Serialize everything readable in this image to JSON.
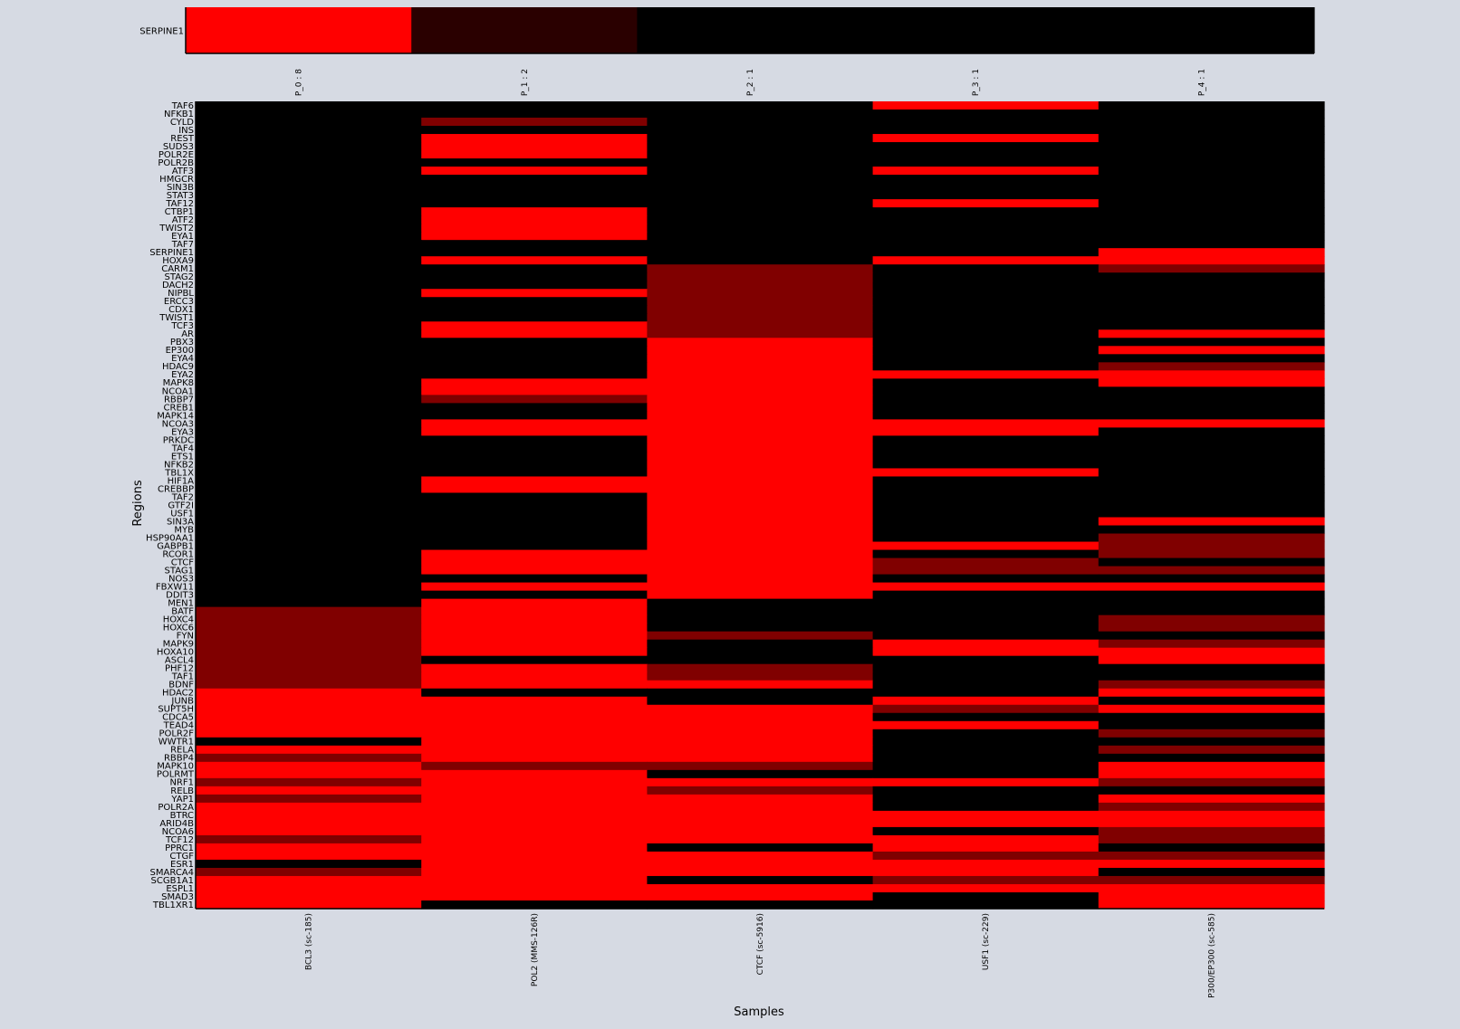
{
  "chart_data": [
    {
      "type": "heatmap",
      "title": "",
      "ylabel": "",
      "rows": [
        "SERPINE1"
      ],
      "columns": [
        "P_0 : 8",
        "P_1 : 2",
        "P_2 : 1",
        "P_3 : 1",
        "P_4 : 1"
      ],
      "values": [
        [
          3,
          1,
          0,
          0,
          0
        ]
      ],
      "color_scale": {
        "0": "#000000",
        "1": "#2a0000",
        "2": "#800000",
        "3": "#ff0000"
      }
    },
    {
      "type": "heatmap",
      "title": "",
      "xlabel": "Samples",
      "ylabel": "Regions",
      "columns": [
        "BCL3 (sc-185)",
        "POL2 (MMS-126R)",
        "CTCF (sc-5916)",
        "USF1 (sc-229)",
        "P300/EP300 (sc-585)"
      ],
      "rows": [
        "TAF6",
        "NFKB1",
        "CYLD",
        "INS",
        "REST",
        "SUDS3",
        "POLR2E",
        "POLR2B",
        "ATF3",
        "HMGCR",
        "SIN3B",
        "STAT3",
        "TAF12",
        "CTBP1",
        "ATF2",
        "TWIST2",
        "EYA1",
        "TAF7",
        "SERPINE1",
        "HOXA9",
        "CARM1",
        "STAG2",
        "DACH2",
        "NIPBL",
        "ERCC3",
        "CDX1",
        "TWIST1",
        "TCF3",
        "AR",
        "PBX3",
        "EP300",
        "EYA4",
        "HDAC9",
        "EYA2",
        "MAPK8",
        "NCOA1",
        "RBBP7",
        "CREB1",
        "MAPK14",
        "NCOA3",
        "EYA3",
        "PRKDC",
        "TAF4",
        "ETS1",
        "NFKB2",
        "TBL1X",
        "HIF1A",
        "CREBBP",
        "TAF2",
        "GTF2I",
        "USF1",
        "SIN3A",
        "MYB",
        "HSP90AA1",
        "GABPB1",
        "RCOR1",
        "CTCF",
        "STAG1",
        "NOS3",
        "FBXW11",
        "DDIT3",
        "MEN1",
        "BATF",
        "HOXC4",
        "HOXC6",
        "FYN",
        "MAPK9",
        "HOXA10",
        "ASCL4",
        "PHF12",
        "TAF1",
        "BDNF",
        "HDAC2",
        "JUNB",
        "SUPT5H",
        "CDCA5",
        "TEAD4",
        "POLR2F",
        "WWTR1",
        "RELA",
        "RBBP4",
        "MAPK10",
        "POLRMT",
        "NRF1",
        "RELB",
        "YAP1",
        "POLR2A",
        "BTRC",
        "ARID4B",
        "NCOA6",
        "TCF12",
        "PPRC1",
        "CTGF",
        "ESR1",
        "SMARCA4",
        "SCGB1A1",
        "ESPL1",
        "SMAD3",
        "TBL1XR1"
      ],
      "values": [
        [
          0,
          0,
          0,
          3,
          0
        ],
        [
          0,
          0,
          0,
          0,
          0
        ],
        [
          0,
          2,
          0,
          0,
          0
        ],
        [
          0,
          0,
          0,
          0,
          0
        ],
        [
          0,
          3,
          0,
          3,
          0
        ],
        [
          0,
          3,
          0,
          0,
          0
        ],
        [
          0,
          3,
          0,
          0,
          0
        ],
        [
          0,
          0,
          0,
          0,
          0
        ],
        [
          0,
          3,
          0,
          3,
          0
        ],
        [
          0,
          0,
          0,
          0,
          0
        ],
        [
          0,
          0,
          0,
          0,
          0
        ],
        [
          0,
          0,
          0,
          0,
          0
        ],
        [
          0,
          0,
          0,
          3,
          0
        ],
        [
          0,
          3,
          0,
          0,
          0
        ],
        [
          0,
          3,
          0,
          0,
          0
        ],
        [
          0,
          3,
          0,
          0,
          0
        ],
        [
          0,
          3,
          0,
          0,
          0
        ],
        [
          0,
          0,
          0,
          0,
          0
        ],
        [
          0,
          0,
          0,
          0,
          3
        ],
        [
          0,
          3,
          0,
          3,
          3
        ],
        [
          0,
          0,
          2,
          0,
          2
        ],
        [
          0,
          0,
          2,
          0,
          0
        ],
        [
          0,
          0,
          2,
          0,
          0
        ],
        [
          0,
          3,
          2,
          0,
          0
        ],
        [
          0,
          0,
          2,
          0,
          0
        ],
        [
          0,
          0,
          2,
          0,
          0
        ],
        [
          0,
          0,
          2,
          0,
          0
        ],
        [
          0,
          3,
          2,
          0,
          0
        ],
        [
          0,
          3,
          2,
          0,
          3
        ],
        [
          0,
          0,
          3,
          0,
          0
        ],
        [
          0,
          0,
          3,
          0,
          3
        ],
        [
          0,
          0,
          3,
          0,
          0
        ],
        [
          0,
          0,
          3,
          0,
          2
        ],
        [
          0,
          0,
          3,
          3,
          3
        ],
        [
          0,
          3,
          3,
          0,
          3
        ],
        [
          0,
          3,
          3,
          0,
          0
        ],
        [
          0,
          2,
          3,
          0,
          0
        ],
        [
          0,
          0,
          3,
          0,
          0
        ],
        [
          0,
          0,
          3,
          0,
          0
        ],
        [
          0,
          3,
          3,
          3,
          3
        ],
        [
          0,
          3,
          3,
          3,
          0
        ],
        [
          0,
          0,
          3,
          0,
          0
        ],
        [
          0,
          0,
          3,
          0,
          0
        ],
        [
          0,
          0,
          3,
          0,
          0
        ],
        [
          0,
          0,
          3,
          0,
          0
        ],
        [
          0,
          0,
          3,
          3,
          0
        ],
        [
          0,
          3,
          3,
          0,
          0
        ],
        [
          0,
          3,
          3,
          0,
          0
        ],
        [
          0,
          0,
          3,
          0,
          0
        ],
        [
          0,
          0,
          3,
          0,
          0
        ],
        [
          0,
          0,
          3,
          0,
          0
        ],
        [
          0,
          0,
          3,
          0,
          3
        ],
        [
          0,
          0,
          3,
          0,
          0
        ],
        [
          0,
          0,
          3,
          0,
          2
        ],
        [
          0,
          0,
          3,
          3,
          2
        ],
        [
          0,
          3,
          3,
          0,
          2
        ],
        [
          0,
          3,
          3,
          2,
          0
        ],
        [
          0,
          3,
          3,
          2,
          2
        ],
        [
          0,
          0,
          3,
          0,
          0
        ],
        [
          0,
          3,
          3,
          3,
          3
        ],
        [
          0,
          0,
          3,
          0,
          0
        ],
        [
          0,
          3,
          0,
          0,
          0
        ],
        [
          2,
          3,
          0,
          0,
          0
        ],
        [
          2,
          3,
          0,
          0,
          2
        ],
        [
          2,
          3,
          0,
          0,
          2
        ],
        [
          2,
          3,
          2,
          0,
          0
        ],
        [
          2,
          3,
          0,
          3,
          2
        ],
        [
          2,
          3,
          0,
          3,
          3
        ],
        [
          2,
          0,
          0,
          0,
          3
        ],
        [
          2,
          3,
          2,
          0,
          0
        ],
        [
          2,
          3,
          2,
          0,
          0
        ],
        [
          2,
          3,
          3,
          0,
          2
        ],
        [
          3,
          0,
          0,
          0,
          3
        ],
        [
          3,
          3,
          0,
          3,
          0
        ],
        [
          3,
          3,
          3,
          2,
          3
        ],
        [
          3,
          3,
          3,
          0,
          0
        ],
        [
          3,
          3,
          3,
          3,
          0
        ],
        [
          3,
          3,
          3,
          0,
          2
        ],
        [
          0,
          3,
          3,
          0,
          0
        ],
        [
          3,
          3,
          3,
          0,
          2
        ],
        [
          2,
          3,
          3,
          0,
          0
        ],
        [
          3,
          2,
          2,
          0,
          3
        ],
        [
          3,
          3,
          0,
          0,
          3
        ],
        [
          2,
          3,
          3,
          3,
          2
        ],
        [
          3,
          3,
          2,
          0,
          0
        ],
        [
          2,
          3,
          3,
          0,
          3
        ],
        [
          3,
          3,
          3,
          0,
          2
        ],
        [
          3,
          3,
          3,
          3,
          3
        ],
        [
          3,
          3,
          3,
          3,
          3
        ],
        [
          3,
          3,
          3,
          0,
          2
        ],
        [
          2,
          3,
          3,
          3,
          2
        ],
        [
          3,
          3,
          0,
          3,
          0
        ],
        [
          3,
          3,
          3,
          2,
          2
        ],
        [
          0,
          3,
          3,
          3,
          3
        ],
        [
          2,
          3,
          3,
          3,
          0
        ],
        [
          3,
          3,
          0,
          2,
          2
        ],
        [
          3,
          3,
          3,
          3,
          3
        ],
        [
          3,
          3,
          3,
          0,
          3
        ],
        [
          3,
          0,
          0,
          0,
          3
        ]
      ],
      "color_scale": {
        "0": "#000000",
        "2": "#800000",
        "3": "#ff0000"
      }
    }
  ]
}
